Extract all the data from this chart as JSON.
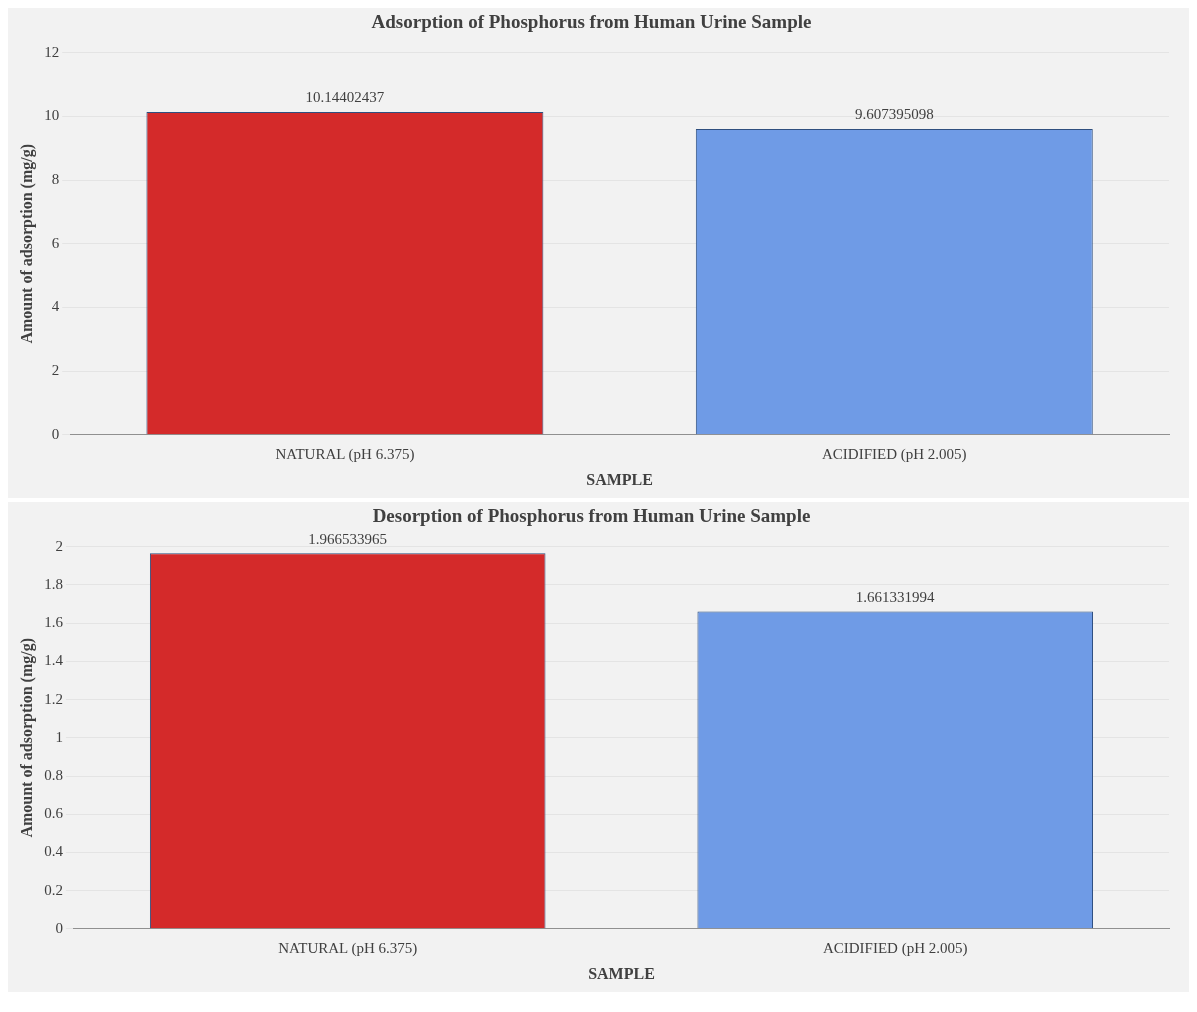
{
  "chart_data": [
    {
      "type": "bar",
      "title": "Adsorption of Phosphorus from Human Urine Sample",
      "xlabel": "SAMPLE",
      "ylabel": "Amount of adsorption (mg/g)",
      "categories": [
        "NATURAL (pH 6.375)",
        "ACIDIFIED (pH 2.005)"
      ],
      "values": [
        10.14402437,
        9.607395098
      ],
      "colors": [
        "#d42a2a",
        "#6f9be6"
      ],
      "ylim": [
        0,
        12
      ],
      "yticks": [
        0,
        2,
        4,
        6,
        8,
        10,
        12
      ],
      "grid": "y",
      "data_labels": true
    },
    {
      "type": "bar",
      "title": "Desorption of Phosphorus from Human Urine Sample",
      "xlabel": "SAMPLE",
      "ylabel": "Amount of adsorption (mg/g)",
      "categories": [
        "NATURAL (pH 6.375)",
        "ACIDIFIED (pH 2.005)"
      ],
      "values": [
        1.966533965,
        1.661331994
      ],
      "colors": [
        "#d42a2a",
        "#6f9be6"
      ],
      "ylim": [
        0,
        2
      ],
      "yticks": [
        0,
        0.2,
        0.4,
        0.6,
        0.8,
        1,
        1.2,
        1.4,
        1.6,
        1.8,
        2
      ],
      "grid": "y",
      "data_labels": true
    }
  ]
}
